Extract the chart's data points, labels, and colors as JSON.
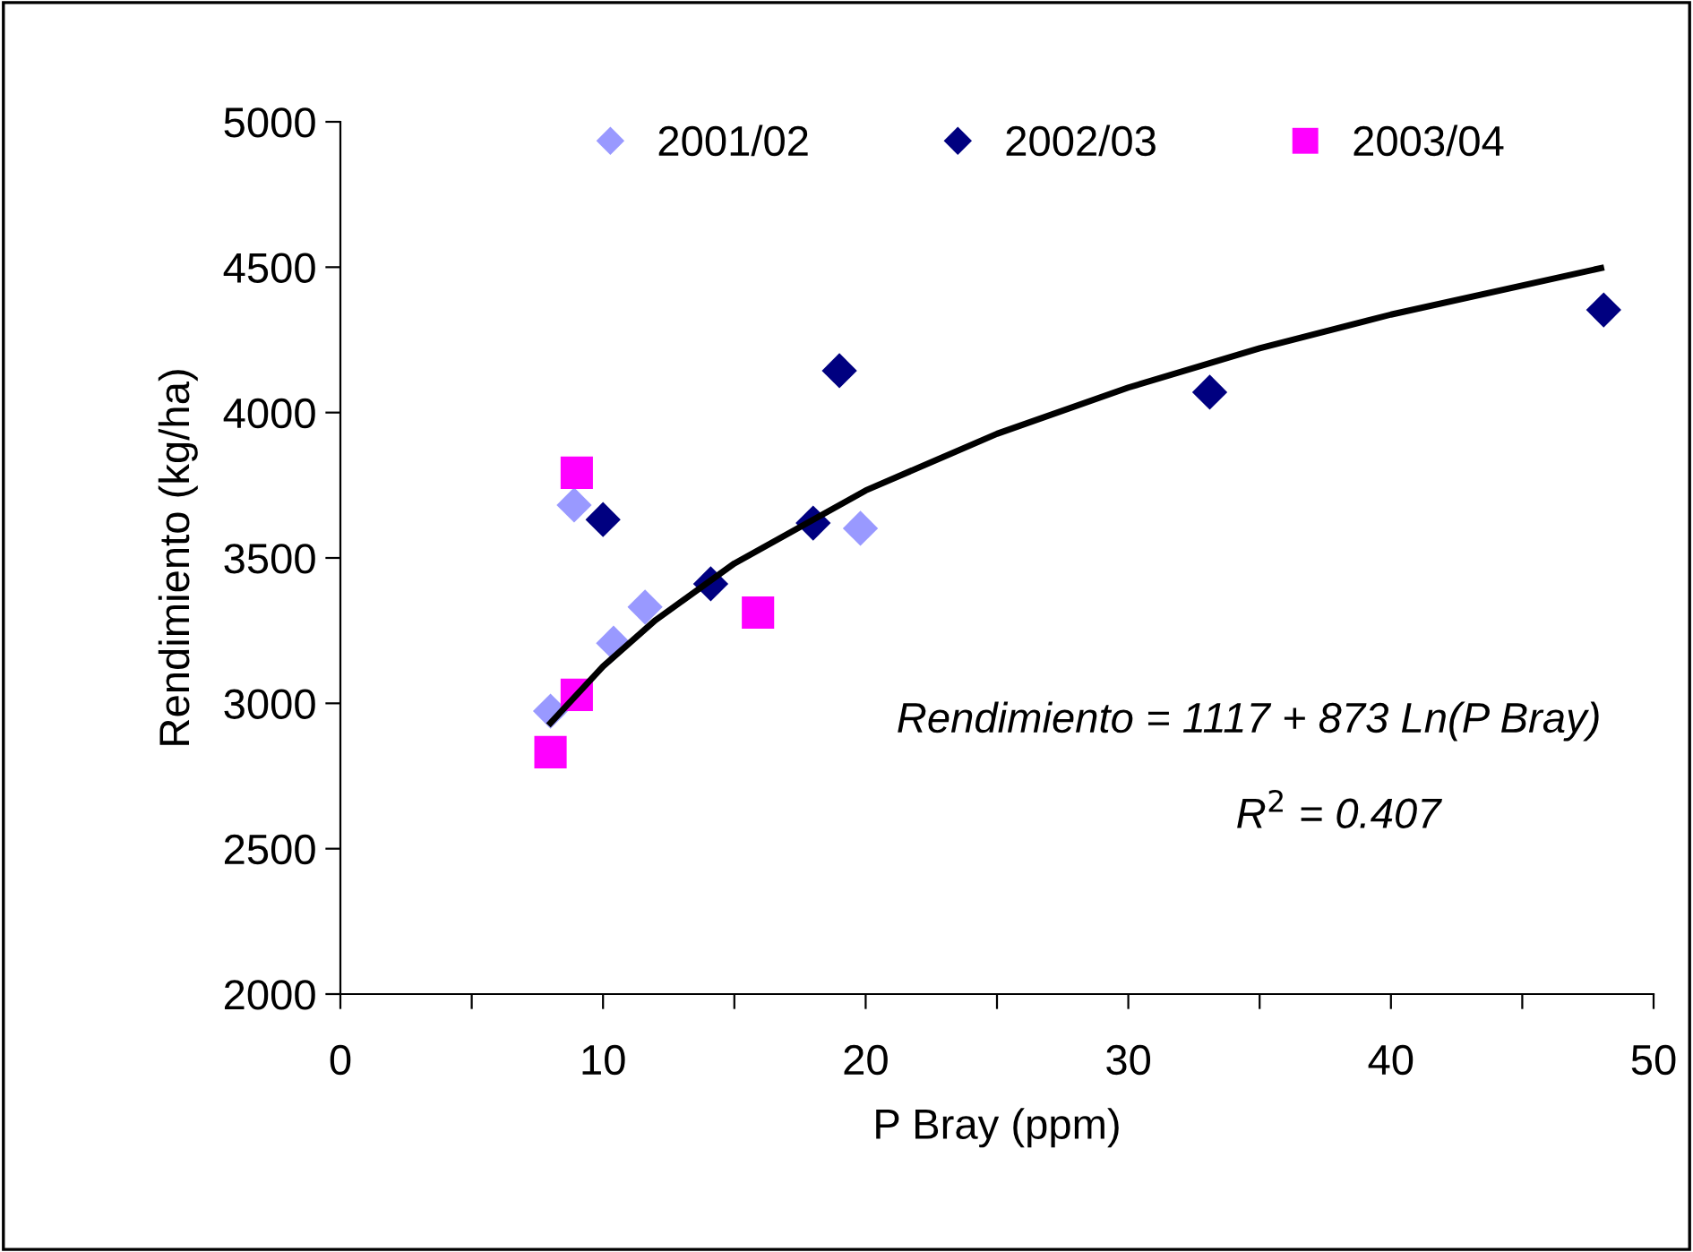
{
  "chart_data": {
    "type": "scatter",
    "xlabel": "P Bray (ppm)",
    "ylabel": "Rendimiento (kg/ha)",
    "xlim": [
      0,
      50
    ],
    "xticks": [
      0,
      {
        "value": 5,
        "label": null
      },
      10,
      {
        "value": 15,
        "label": null
      },
      20,
      {
        "value": 25,
        "label": null
      },
      30,
      {
        "value": 35,
        "label": null
      },
      40,
      {
        "value": 45,
        "label": null
      },
      50
    ],
    "ylim": [
      2000,
      5000
    ],
    "yticks": [
      2000,
      2500,
      3000,
      3500,
      4000,
      4500,
      5000
    ],
    "grid": false,
    "legend": "top",
    "series": [
      {
        "name": "2001/02",
        "color": "#9999ff",
        "marker": "diamond",
        "x": [
          8.0,
          8.9,
          10.4,
          11.6,
          19.8
        ],
        "values": [
          2973,
          3682,
          3207,
          3331,
          3602
        ]
      },
      {
        "name": "2002/03",
        "color": "#000080",
        "marker": "diamond",
        "x": [
          10.0,
          14.1,
          18.0,
          19.0,
          33.1,
          48.1
        ],
        "values": [
          3632,
          3411,
          3620,
          4144,
          4070,
          4353
        ]
      },
      {
        "name": "2003/04",
        "color": "#ff00ff",
        "marker": "square",
        "x": [
          9.0,
          9.0,
          8.0,
          15.9
        ],
        "values": [
          3793,
          3029,
          2832,
          3312
        ]
      },
      {
        "type": "line",
        "color": "#000000",
        "marker": "none",
        "x": [
          8,
          10,
          12,
          15,
          20,
          25,
          30,
          35,
          40,
          48
        ],
        "values": [
          2932,
          3127,
          3286,
          3481,
          3732,
          3927,
          4086,
          4221,
          4337,
          4497
        ]
      }
    ],
    "annotations": [
      "Rendimiento = 1117 + 873 Ln(P Bray)",
      "R$^{2}$ = 0.407"
    ]
  }
}
